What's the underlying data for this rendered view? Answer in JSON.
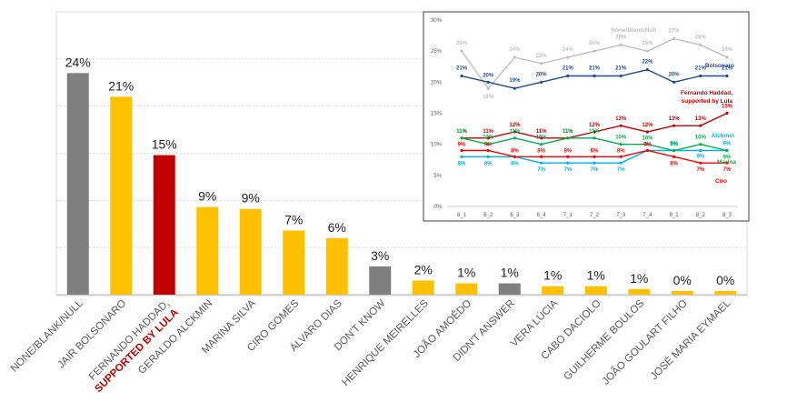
{
  "chart_data": [
    {
      "type": "bar",
      "categories": [
        "NONE/BLANK/NULL",
        "JAIR BOLSONARO",
        "FERNANDO HADDAD,",
        "GERALDO ALCKMIN",
        "MARINA SILVA",
        "CIRO GOMES",
        "ÁLVARO DIAS",
        "DON'T KNOW",
        "HENRIQUE MEIRELLES",
        "JOÃO AMOÊDO",
        "DIDN'T ANSWER",
        "VERA LÚCIA",
        "CABO DACIOLO",
        "GUILHERME BOULOS",
        "JOÃO GOULART FILHO",
        "JOSÉ MARIA EYMAEL"
      ],
      "category_sublabel": {
        "index": 2,
        "text": "SUPPORTED BY LULA",
        "color": "#c00000"
      },
      "values": [
        24,
        21,
        15,
        9,
        9,
        7,
        6,
        3,
        2,
        1,
        1,
        1,
        1,
        1,
        0,
        0
      ],
      "display_values": [
        23.5,
        21.0,
        14.8,
        9.3,
        9.1,
        6.8,
        6.0,
        3.0,
        1.5,
        1.2,
        1.2,
        0.9,
        0.9,
        0.6,
        0.4,
        0.4
      ],
      "data_labels": [
        "24%",
        "21%",
        "15%",
        "9%",
        "9%",
        "7%",
        "6%",
        "3%",
        "2%",
        "1%",
        "1%",
        "1%",
        "1%",
        "1%",
        "0%",
        "0%"
      ],
      "colors": [
        "#7f7f7f",
        "#ffc000",
        "#c00000",
        "#ffc000",
        "#ffc000",
        "#ffc000",
        "#ffc000",
        "#7f7f7f",
        "#ffc000",
        "#ffc000",
        "#7f7f7f",
        "#ffc000",
        "#ffc000",
        "#ffc000",
        "#ffc000",
        "#ffc000"
      ],
      "ylim": [
        0,
        30
      ],
      "grid": true
    },
    {
      "type": "line",
      "x": [
        "6_1",
        "6_2",
        "6_3",
        "6_4",
        "7_1",
        "7_2",
        "7_3",
        "7_4",
        "8_1",
        "8_2",
        "8_3"
      ],
      "ylim": [
        0,
        30
      ],
      "yticks": [
        "0%",
        "5%",
        "10%",
        "15%",
        "20%",
        "25%",
        "30%"
      ],
      "series": [
        {
          "name": "None/Blank/Null",
          "color": "#bfbfbf",
          "values": [
            25,
            19,
            24,
            23,
            24,
            25,
            26,
            25,
            27,
            26,
            24
          ],
          "labels": [
            "25%",
            "19%",
            "24%",
            "23%",
            "24%",
            "25%",
            "26%",
            "25%",
            "27%",
            "26%",
            "24%"
          ]
        },
        {
          "name": "Bolsonaro",
          "color": "#1f4e8c",
          "values": [
            21,
            20,
            19,
            20,
            21,
            21,
            21,
            22,
            20,
            21,
            21
          ],
          "labels": [
            "21%",
            "20%",
            "19%",
            "20%",
            "21%",
            "21%",
            "21%",
            "22%",
            "20%",
            "21%",
            "21%"
          ]
        },
        {
          "name_lines": [
            "Fernando Haddad,",
            "supported by Lula"
          ],
          "color": "#c00000",
          "values": [
            11,
            11,
            12,
            11,
            11,
            12,
            13,
            12,
            13,
            13,
            15
          ],
          "labels": [
            "11%",
            "11%",
            "12%",
            "11%",
            "11%",
            "12%",
            "13%",
            "12%",
            "13%",
            "13%",
            "15%"
          ]
        },
        {
          "name": "Alckmin",
          "color": "#00b0f0",
          "values": [
            8,
            8,
            8,
            7,
            7,
            7,
            7,
            9,
            9,
            9,
            9
          ],
          "labels": [
            "8%",
            "8%",
            "8%",
            "7%",
            "7%",
            "7%",
            "7%",
            "9%",
            "9%",
            "9%",
            "9%"
          ]
        },
        {
          "name": "Marina",
          "color": "#00b050",
          "values": [
            11,
            10,
            11,
            10,
            11,
            11,
            10,
            10,
            9,
            10,
            9
          ],
          "labels": [
            "11%",
            "10%",
            "11%",
            "10%",
            "11%",
            "11%",
            "10%",
            "10%",
            "9%",
            "10%",
            "9%"
          ]
        },
        {
          "name": "Ciro",
          "color": "#ff0000",
          "values": [
            9,
            9,
            8,
            8,
            8,
            8,
            8,
            9,
            8,
            7,
            7
          ],
          "labels": [
            "9%",
            "9%",
            "8%",
            "8%",
            "8%",
            "8%",
            "8%",
            "9%",
            "8%",
            "7%",
            "7%"
          ]
        }
      ]
    }
  ]
}
